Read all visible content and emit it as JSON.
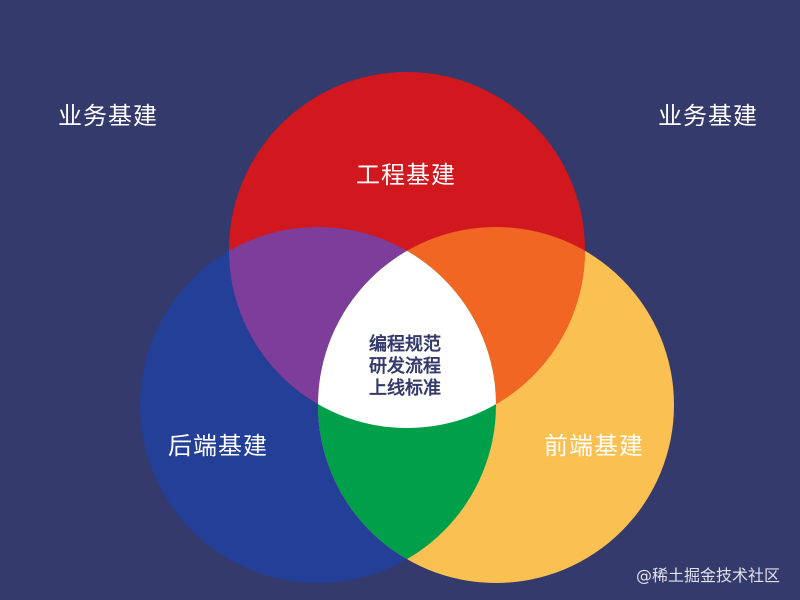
{
  "corner_labels": {
    "left": "业务基建",
    "right": "业务基建"
  },
  "circles": {
    "engineering": {
      "label": "工程基建",
      "color": "#d1181f"
    },
    "backend": {
      "label": "后端基建",
      "color": "#233f98"
    },
    "frontend": {
      "label": "前端基建",
      "color": "#fbc052"
    }
  },
  "overlaps": {
    "engineering_backend": "#7e3c9b",
    "engineering_frontend": "#f26624",
    "backend_frontend": "#00a04a",
    "center": "#ffffff"
  },
  "center_text": {
    "line1": "编程规范",
    "line2": "研发流程",
    "line3": "上线标准"
  },
  "credit": "@稀土掘金技术社区",
  "background_color": "#343a6b"
}
